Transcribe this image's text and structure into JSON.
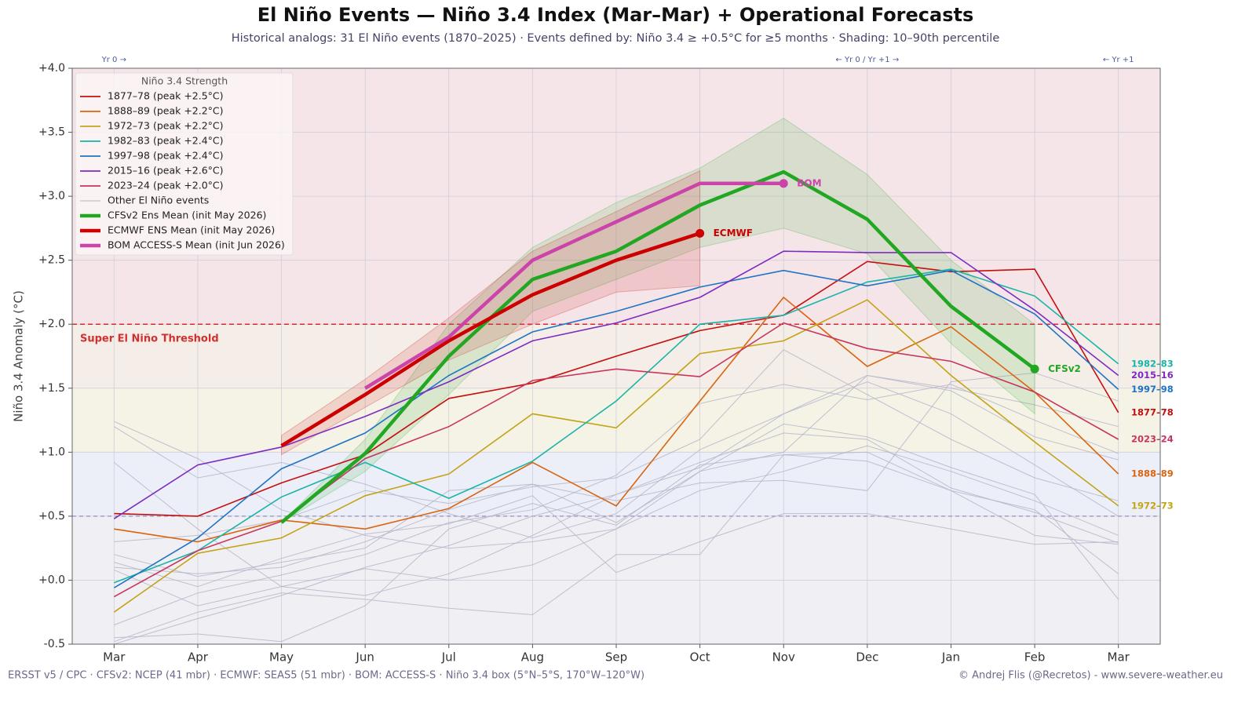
{
  "chart_data": {
    "type": "line",
    "title": "El Niño Events — Niño 3.4 Index (Mar–Mar) + Operational Forecasts",
    "subtitle": "Historical analogs: 31 El Niño events  (1870–2025)  ·  Events defined by: Niño 3.4 ≥ +0.5°C for ≥5 months  ·  Shading: 10–90th percentile",
    "y_label": "Niño 3.4 Anomaly (°C)",
    "legend_title": "Niño 3.4 Strength",
    "legend_position": "upper left",
    "grid": true,
    "categories": [
      "Mar",
      "Apr",
      "May",
      "Jun",
      "Jul",
      "Aug",
      "Sep",
      "Oct",
      "Nov",
      "Dec",
      "Jan",
      "Feb",
      "Mar"
    ],
    "xlim": [
      -0.5,
      12.5
    ],
    "ylim": [
      -0.5,
      4.0
    ],
    "yticks": [
      {
        "value": -0.5,
        "label": "-0.5"
      },
      {
        "value": 0,
        "label": "+0.0"
      },
      {
        "value": 0.5,
        "label": "+0.5"
      },
      {
        "value": 1,
        "label": "+1.0"
      },
      {
        "value": 1.5,
        "label": "+1.5"
      },
      {
        "value": 2,
        "label": "+2.0"
      },
      {
        "value": 2.5,
        "label": "+2.5"
      },
      {
        "value": 3,
        "label": "+3.0"
      },
      {
        "value": 3.5,
        "label": "+3.5"
      },
      {
        "value": 4,
        "label": "+4.0"
      }
    ],
    "strength_bands": [
      {
        "from": -0.5,
        "to": 0.5,
        "color": "#f0eff3"
      },
      {
        "from": 0.5,
        "to": 1.0,
        "color": "#eceef8"
      },
      {
        "from": 1.0,
        "to": 1.5,
        "color": "#f5f2e6"
      },
      {
        "from": 1.5,
        "to": 2.0,
        "color": "#f5ede7"
      },
      {
        "from": 2.0,
        "to": 4.0,
        "color": "#f5e5e8"
      }
    ],
    "threshold": {
      "value": 2.0,
      "label": "Super El Niño Threshold",
      "color": "#d03030"
    },
    "weak_line": {
      "value": 0.5,
      "color": "#9090c0"
    },
    "top_annotations": [
      {
        "at": 0,
        "text": "Yr 0 →"
      },
      {
        "at": 9,
        "text": "← Yr 0 / Yr +1 →"
      },
      {
        "at": 12,
        "text": "← Yr +1"
      }
    ],
    "other_events": {
      "name": "Other El Niño events",
      "color": "#b6b6ca",
      "series": [
        [
          1.24,
          0.95,
          0.55,
          0.35,
          0.25,
          0.3,
          0.4,
          0.7,
          0.85,
          1.05,
          0.85,
          0.62,
          0.35
        ],
        [
          0.92,
          0.4,
          -0.05,
          -0.12,
          0.05,
          0.35,
          0.67,
          0.92,
          1.15,
          1.1,
          0.72,
          0.53,
          0.29
        ],
        [
          0.1,
          0.05,
          0.1,
          0.3,
          0.55,
          0.75,
          0.45,
          0.85,
          1.0,
          1.6,
          1.5,
          1.37,
          1.2
        ],
        [
          0.3,
          0.35,
          0.47,
          0.7,
          0.6,
          0.73,
          0.8,
          1.1,
          1.8,
          1.45,
          1.1,
          0.8,
          0.62
        ],
        [
          -0.35,
          -0.1,
          0.04,
          0.2,
          0.45,
          0.55,
          0.82,
          1.38,
          1.53,
          1.41,
          1.53,
          1.25,
          0.99
        ],
        [
          -0.5,
          -0.3,
          -0.12,
          0.1,
          0.27,
          0.5,
          0.67,
          0.88,
          1.3,
          1.55,
          1.3,
          0.9,
          0.5
        ],
        [
          0.14,
          -0.05,
          0.17,
          0.36,
          0.44,
          0.66,
          0.06,
          0.3,
          0.52,
          0.52,
          0.4,
          0.28,
          0.3
        ],
        [
          -0.45,
          -0.42,
          -0.48,
          -0.2,
          0.4,
          0.6,
          0.43,
          0.9,
          0.98,
          1.0,
          0.7,
          0.55,
          0.05
        ],
        [
          0.08,
          -0.2,
          -0.05,
          0.09,
          0.0,
          0.12,
          0.4,
          0.85,
          1.22,
          1.12,
          0.88,
          0.67,
          -0.15
        ],
        [
          0.2,
          0.03,
          0.14,
          0.25,
          0.7,
          0.75,
          0.62,
          0.76,
          0.78,
          0.7,
          1.55,
          1.62,
          1.4
        ],
        [
          -0.48,
          -0.25,
          -0.1,
          -0.15,
          -0.22,
          -0.27,
          0.2,
          0.2,
          0.98,
          0.93,
          0.7,
          0.35,
          0.28
        ],
        [
          1.2,
          0.8,
          0.92,
          0.75,
          0.52,
          0.33,
          0.52,
          1.02,
          1.3,
          1.6,
          1.48,
          1.12,
          0.94
        ]
      ]
    },
    "series": [
      {
        "name": "1877–78",
        "label": "1877–78  (peak +2.5°C)",
        "color": "#c40f0f",
        "values": [
          0.52,
          0.5,
          0.76,
          0.98,
          1.42,
          1.54,
          1.75,
          1.95,
          2.07,
          2.49,
          2.41,
          2.43,
          1.31
        ]
      },
      {
        "name": "1888–89",
        "label": "1888–89  (peak +2.2°C)",
        "color": "#d9650f",
        "values": [
          0.4,
          0.3,
          0.47,
          0.4,
          0.56,
          0.92,
          0.58,
          1.4,
          2.21,
          1.67,
          1.98,
          1.47,
          0.83
        ]
      },
      {
        "name": "1972–73",
        "label": "1972–73  (peak +2.2°C)",
        "color": "#c4a417",
        "values": [
          -0.25,
          0.21,
          0.33,
          0.66,
          0.83,
          1.3,
          1.19,
          1.77,
          1.87,
          2.19,
          1.6,
          1.08,
          0.58
        ]
      },
      {
        "name": "1982–83",
        "label": "1982–83  (peak +2.4°C)",
        "color": "#19b5a8",
        "values": [
          -0.02,
          0.23,
          0.65,
          0.92,
          0.64,
          0.93,
          1.4,
          2.0,
          2.07,
          2.33,
          2.43,
          2.22,
          1.69
        ]
      },
      {
        "name": "1997–98",
        "label": "1997–98  (peak +2.4°C)",
        "color": "#1f74c4",
        "values": [
          -0.06,
          0.33,
          0.87,
          1.15,
          1.6,
          1.94,
          2.1,
          2.29,
          2.42,
          2.3,
          2.42,
          2.08,
          1.49
        ]
      },
      {
        "name": "2015–16",
        "label": "2015–16  (peak +2.6°C)",
        "color": "#7c2cc0",
        "values": [
          0.48,
          0.9,
          1.04,
          1.28,
          1.55,
          1.87,
          2.01,
          2.21,
          2.57,
          2.56,
          2.56,
          2.11,
          1.6
        ]
      },
      {
        "name": "2023–24",
        "label": "2023–24  (peak +2.0°C)",
        "color": "#c8365c",
        "values": [
          -0.13,
          0.23,
          0.46,
          0.95,
          1.2,
          1.56,
          1.65,
          1.59,
          2.01,
          1.81,
          1.71,
          1.47,
          1.1
        ]
      }
    ],
    "forecasts": [
      {
        "name": "CFSv2",
        "label": "CFSv2 Ens Mean  (init May 2026)",
        "color": "#22a722",
        "values": [
          null,
          null,
          0.45,
          0.99,
          1.75,
          2.35,
          2.57,
          2.93,
          3.19,
          2.82,
          2.14,
          1.65,
          null
        ],
        "lower": [
          null,
          null,
          0.45,
          0.85,
          1.45,
          2.1,
          2.35,
          2.6,
          2.75,
          2.55,
          1.85,
          1.3,
          null
        ],
        "upper": [
          null,
          null,
          0.45,
          1.1,
          2.0,
          2.6,
          2.95,
          3.22,
          3.61,
          3.17,
          2.5,
          2.0,
          null
        ]
      },
      {
        "name": "ECMWF",
        "label": "ECMWF ENS Mean  (init May 2026)",
        "color": "#cc0000",
        "values": [
          null,
          null,
          1.05,
          1.45,
          1.87,
          2.23,
          2.5,
          2.71,
          null,
          null,
          null,
          null,
          null
        ],
        "lower": [
          null,
          null,
          0.98,
          1.35,
          1.72,
          2.0,
          2.25,
          2.3,
          null,
          null,
          null,
          null,
          null
        ],
        "upper": [
          null,
          null,
          1.13,
          1.57,
          2.05,
          2.57,
          2.88,
          3.2,
          null,
          null,
          null,
          null,
          null
        ]
      },
      {
        "name": "BOM",
        "label": "BOM ACCESS-S Mean  (init Jun 2026)",
        "color": "#cc44aa",
        "values": [
          null,
          null,
          null,
          1.5,
          1.9,
          2.5,
          2.8,
          3.1,
          3.1,
          null,
          null,
          null,
          null
        ]
      }
    ],
    "footer_left": "ERSST v5 / CPC   ·   CFSv2: NCEP (41 mbr)   ·   ECMWF: SEAS5 (51 mbr)   ·   BOM: ACCESS-S   ·   Niño 3.4 box (5°N–5°S, 170°W–120°W)",
    "footer_right": "© Andrej Flis (@Recretos) - www.severe-weather.eu"
  }
}
